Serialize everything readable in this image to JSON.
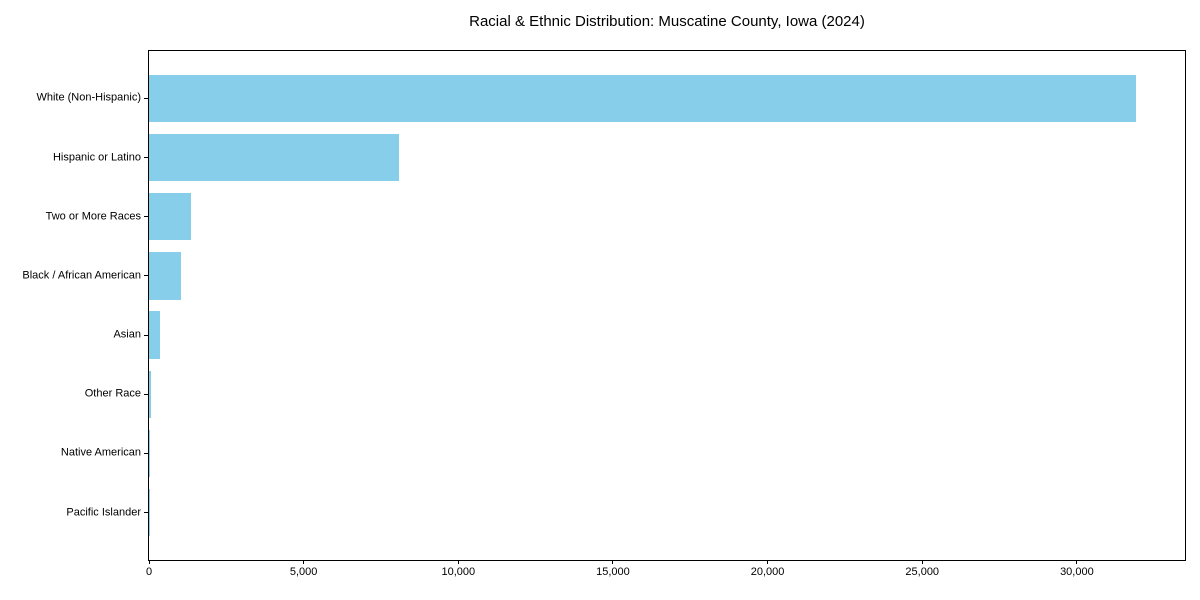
{
  "figure": {
    "background": "#ffffff"
  },
  "chart_data": {
    "type": "bar",
    "orientation": "horizontal",
    "title": "Racial & Ethnic Distribution: Muscatine County, Iowa (2024)",
    "categories": [
      "White (Non-Hispanic)",
      "Hispanic or Latino",
      "Two or More Races",
      "Black / African American",
      "Asian",
      "Other Race",
      "Native American",
      "Pacific Islander"
    ],
    "values": [
      31900,
      8070,
      1350,
      1025,
      370,
      50,
      40,
      20
    ],
    "xlabel": "",
    "ylabel": "",
    "xlim": [
      0,
      33495
    ],
    "xticks": [
      0,
      5000,
      10000,
      15000,
      20000,
      25000,
      30000
    ],
    "xtick_labels": [
      "0",
      "5,000",
      "10,000",
      "15,000",
      "20,000",
      "25,000",
      "30,000"
    ],
    "bar_color": "#87CEEB",
    "spine_color": "#000000",
    "grid": false,
    "legend_position": "none"
  }
}
